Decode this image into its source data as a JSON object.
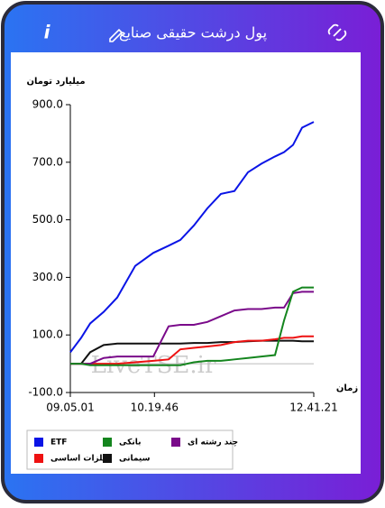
{
  "header": {
    "title": "پول درشت حقیقی صنایع",
    "info": "i"
  },
  "chart_data": {
    "type": "line",
    "y_label": "میلیارد تومان",
    "x_label": "زمان",
    "watermark": "LiveTSE.ir",
    "xlim": [
      32701,
      45681
    ],
    "xticks": [
      {
        "value": 32701,
        "label": "09.05.01"
      },
      {
        "value": 37186,
        "label": "10.19.46"
      },
      {
        "value": 45681,
        "label": "12.41.21"
      }
    ],
    "ylim": [
      -100,
      900
    ],
    "yticks": [
      {
        "value": -100,
        "label": "-100.0"
      },
      {
        "value": 100,
        "label": "100.0"
      },
      {
        "value": 300,
        "label": "300.0"
      },
      {
        "value": 500,
        "label": "500.0"
      },
      {
        "value": 700,
        "label": "700.0"
      },
      {
        "value": 900,
        "label": "900.0"
      }
    ],
    "x": [
      32701,
      33278,
      33759,
      34480,
      35201,
      36162,
      37124,
      37941,
      38566,
      39287,
      40008,
      40729,
      41451,
      42172,
      42893,
      43614,
      44095,
      44575,
      45056,
      45681
    ],
    "series": [
      {
        "name": "ETF",
        "color": "#0a14e6",
        "values": [
          40,
          90,
          140,
          180,
          230,
          340,
          385,
          410,
          430,
          480,
          540,
          590,
          600,
          665,
          695,
          720,
          735,
          760,
          820,
          840
        ]
      },
      {
        "name": "بانکی",
        "color": "#14851e",
        "values": [
          0,
          0,
          -5,
          -5,
          -5,
          -5,
          -5,
          -5,
          -5,
          5,
          10,
          10,
          15,
          20,
          25,
          30,
          150,
          250,
          265,
          265
        ]
      },
      {
        "name": "چند رشته ای",
        "color": "#7a0a8a",
        "values": [
          0,
          0,
          0,
          20,
          25,
          25,
          25,
          130,
          135,
          135,
          145,
          165,
          185,
          190,
          190,
          195,
          195,
          245,
          250,
          250
        ]
      },
      {
        "name": "فلزات اساسی",
        "color": "#ee1111",
        "values": [
          0,
          0,
          0,
          0,
          0,
          5,
          10,
          15,
          50,
          55,
          60,
          65,
          75,
          80,
          80,
          85,
          90,
          90,
          95,
          95
        ]
      },
      {
        "name": "سیمانی",
        "color": "#111111",
        "values": [
          0,
          0,
          40,
          65,
          70,
          70,
          70,
          70,
          70,
          72,
          72,
          75,
          75,
          78,
          80,
          80,
          80,
          80,
          78,
          78
        ]
      }
    ]
  }
}
